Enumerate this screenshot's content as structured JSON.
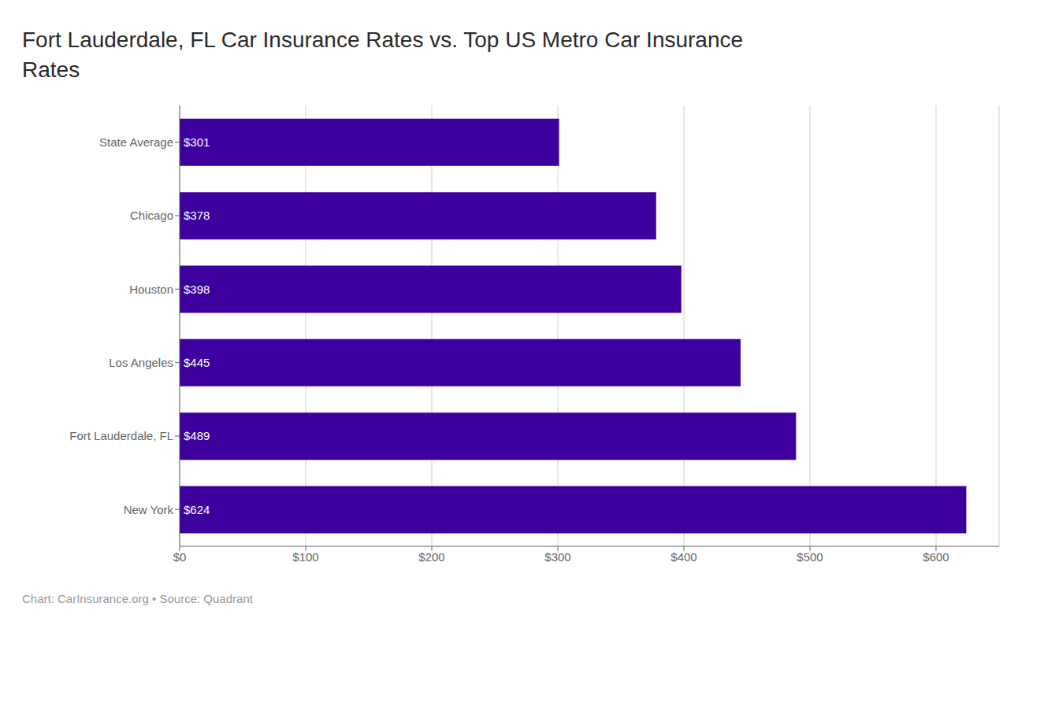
{
  "chart_data": {
    "type": "bar",
    "title": "Fort Lauderdale, FL Car Insurance Rates vs. Top US Metro Car Insurance\nRates",
    "orientation": "horizontal",
    "categories": [
      "State Average",
      "Chicago",
      "Houston",
      "Los Angeles",
      "Fort Lauderdale, FL",
      "New York"
    ],
    "values": [
      301,
      378,
      398,
      445,
      489,
      624
    ],
    "value_labels": [
      "$301",
      "$378",
      "$398",
      "$445",
      "$489",
      "$624"
    ],
    "data_labels": true,
    "color": "#3d009e",
    "xlim": [
      0,
      650
    ],
    "xticks": [
      {
        "value": 0,
        "label": "$0"
      },
      {
        "value": 100,
        "label": "$100"
      },
      {
        "value": 200,
        "label": "$200"
      },
      {
        "value": 300,
        "label": "$300"
      },
      {
        "value": 400,
        "label": "$400"
      },
      {
        "value": 500,
        "label": "$500"
      },
      {
        "value": 600,
        "label": "$600"
      }
    ],
    "grid": true,
    "annotations": [
      "Chart: CarInsurance.org • Source: Quadrant"
    ]
  }
}
